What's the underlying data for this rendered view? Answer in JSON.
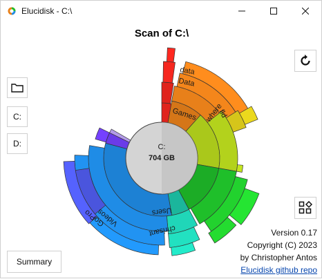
{
  "window": {
    "title": "Elucidisk - C:\\",
    "controls": {
      "minimize": "minimize",
      "maximize": "maximize",
      "close": "close"
    }
  },
  "scan": {
    "title": "Scan of C:\\",
    "drive_label": "C:",
    "size": "704 GB"
  },
  "sidebar": {
    "folder_icon": "folder-icon",
    "drives": [
      "C:",
      "D:"
    ]
  },
  "right_buttons": {
    "refresh_icon": "refresh-icon",
    "shapes_icon": "shapes-icon"
  },
  "summary_label": "Summary",
  "about": {
    "version": "Version 0.17",
    "copyright": "Copyright (C) 2023",
    "author": "by Christopher Antos",
    "link": "Elucidisk github repo"
  },
  "segment_labels": {
    "data_lower": "data",
    "data_upper": "Data",
    "games": "Games",
    "fld": "fld",
    "where": "where",
    "users": "Users",
    "chrisant": "chrisant",
    "videos": "Videos",
    "gopro": "GoPro"
  },
  "colors": {
    "red": "#e0231c",
    "orange": "#e8801a",
    "yellow": "#d6c51a",
    "lime": "#b3d21c",
    "green": "#1fbf2a",
    "teal": "#20d6b8",
    "blue": "#1f8ce6",
    "indigo": "#4a55dd",
    "violet": "#6a3be8",
    "hub": "#d4d4d4"
  }
}
